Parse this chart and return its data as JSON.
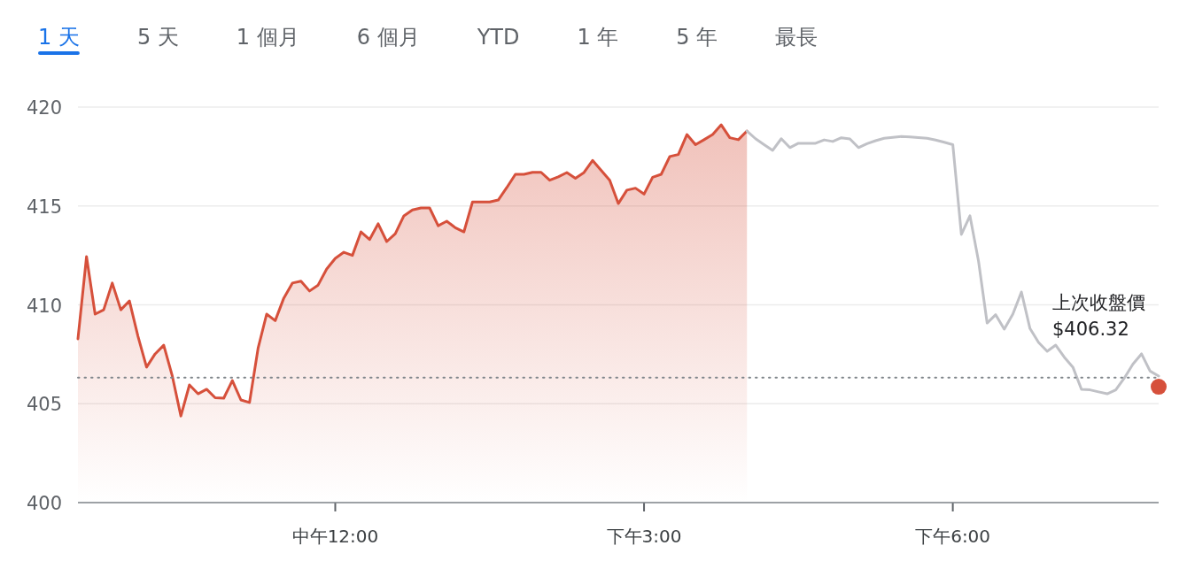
{
  "chart_data": {
    "type": "line",
    "annotations": [
      "1 天",
      "5 天",
      "1 個月",
      "6 個月",
      "YTD",
      "1 年",
      "5 年",
      "最長"
    ],
    "categories": [
      null,
      null,
      null,
      null,
      null,
      null,
      null,
      null,
      null,
      null,
      null,
      null,
      null,
      null,
      null,
      null,
      null,
      null,
      null,
      null,
      null,
      null,
      null,
      null,
      null,
      null,
      null,
      null,
      null,
      null,
      "中午12:00",
      null,
      null,
      null,
      null,
      null,
      null,
      null,
      null,
      null,
      null,
      null,
      null,
      null,
      null,
      null,
      null,
      null,
      null,
      null,
      null,
      null,
      null,
      null,
      null,
      null,
      null,
      null,
      null,
      null,
      null,
      null,
      null,
      null,
      null,
      null,
      "下午3:00",
      null,
      null,
      null,
      null,
      null,
      null,
      null,
      null,
      null,
      null,
      null,
      null,
      null,
      null,
      null,
      null,
      null,
      null,
      null,
      null,
      null,
      null,
      null,
      null,
      null,
      null,
      null,
      null,
      null,
      null,
      null,
      null,
      null,
      null,
      null,
      "下午6:00",
      null,
      null,
      null,
      null,
      null,
      null,
      null,
      null,
      null,
      null,
      null,
      null,
      null,
      null,
      null,
      null,
      null,
      null,
      null,
      null,
      null,
      null,
      null,
      null
    ],
    "ylim": [
      400,
      420
    ],
    "yticks": [
      400,
      405,
      410,
      415,
      420
    ],
    "grid": "y",
    "marker": "none",
    "ref_lines": [
      {
        "axis": "y",
        "value": 406.32,
        "label": "上次收盤價 $406.32",
        "color": "#80868b",
        "line_style": "dotted"
      }
    ],
    "series": [
      {
        "type": "area",
        "color": "#d6503b",
        "values": [
          408.28,
          412.44,
          409.53,
          409.75,
          411.1,
          409.75,
          410.2,
          408.41,
          406.85,
          407.52,
          407.96,
          406.4,
          404.38,
          405.95,
          405.5,
          405.73,
          405.3,
          405.28,
          406.17,
          405.19,
          405.06,
          407.8,
          409.53,
          409.2,
          410.34,
          411.1,
          411.2,
          410.7,
          411.0,
          411.81,
          412.35,
          412.66,
          412.5,
          413.69,
          413.3,
          414.1,
          413.2,
          413.6,
          414.5,
          414.8,
          414.9,
          414.9,
          414.0,
          414.23,
          413.9,
          413.69,
          415.2,
          415.2,
          415.2,
          415.3,
          415.93,
          416.6,
          416.6,
          416.7,
          416.7,
          416.3,
          416.47,
          416.69,
          416.4,
          416.69,
          417.3,
          416.8,
          416.3,
          415.12,
          415.8,
          415.9,
          415.6,
          416.45,
          416.6,
          417.5,
          417.6,
          418.61,
          418.1,
          418.35,
          418.61,
          419.1,
          418.45,
          418.35,
          418.79,
          null,
          null,
          null,
          null,
          null,
          null,
          null,
          null,
          null,
          null,
          null,
          null,
          null,
          null,
          null,
          null,
          null,
          null,
          null,
          null,
          null,
          null,
          null,
          null,
          null,
          null,
          null,
          null,
          null,
          null,
          null,
          null,
          null,
          null,
          null,
          null,
          null,
          null,
          null,
          null,
          null,
          null,
          null,
          null,
          null,
          null,
          null,
          null
        ]
      },
      {
        "type": "line",
        "color": "#c0c1c6",
        "values": [
          null,
          null,
          null,
          null,
          null,
          null,
          null,
          null,
          null,
          null,
          null,
          null,
          null,
          null,
          null,
          null,
          null,
          null,
          null,
          null,
          null,
          null,
          null,
          null,
          null,
          null,
          null,
          null,
          null,
          null,
          null,
          null,
          null,
          null,
          null,
          null,
          null,
          null,
          null,
          null,
          null,
          null,
          null,
          null,
          null,
          null,
          null,
          null,
          null,
          null,
          null,
          null,
          null,
          null,
          null,
          null,
          null,
          null,
          null,
          null,
          null,
          null,
          null,
          null,
          null,
          null,
          null,
          null,
          null,
          null,
          null,
          null,
          null,
          null,
          null,
          null,
          null,
          null,
          418.79,
          418.4,
          418.1,
          417.81,
          418.4,
          417.95,
          418.17,
          418.17,
          418.17,
          418.34,
          418.26,
          418.45,
          418.39,
          417.95,
          418.15,
          418.3,
          418.42,
          418.47,
          418.51,
          418.49,
          418.46,
          418.42,
          418.33,
          418.22,
          418.1,
          413.56,
          414.5,
          412.2,
          409.08,
          409.5,
          408.77,
          409.53,
          410.65,
          408.8,
          408.1,
          407.65,
          407.96,
          407.35,
          406.85,
          405.73,
          405.7,
          405.6,
          405.5,
          405.7,
          406.3,
          407.0,
          407.52,
          406.65,
          406.4
        ]
      },
      {
        "type": "scatter",
        "color": "#d6503b",
        "marker": "circle",
        "values": [
          null,
          null,
          null,
          null,
          null,
          null,
          null,
          null,
          null,
          null,
          null,
          null,
          null,
          null,
          null,
          null,
          null,
          null,
          null,
          null,
          null,
          null,
          null,
          null,
          null,
          null,
          null,
          null,
          null,
          null,
          null,
          null,
          null,
          null,
          null,
          null,
          null,
          null,
          null,
          null,
          null,
          null,
          null,
          null,
          null,
          null,
          null,
          null,
          null,
          null,
          null,
          null,
          null,
          null,
          null,
          null,
          null,
          null,
          null,
          null,
          null,
          null,
          null,
          null,
          null,
          null,
          null,
          null,
          null,
          null,
          null,
          null,
          null,
          null,
          null,
          null,
          null,
          null,
          null,
          null,
          null,
          null,
          null,
          null,
          null,
          null,
          null,
          null,
          null,
          null,
          null,
          null,
          null,
          null,
          null,
          null,
          null,
          null,
          null,
          null,
          null,
          null,
          null,
          null,
          null,
          null,
          null,
          null,
          null,
          null,
          null,
          null,
          null,
          null,
          null,
          null,
          null,
          null,
          null,
          null,
          null,
          null,
          null,
          null,
          null,
          null,
          405.86
        ]
      }
    ]
  }
}
